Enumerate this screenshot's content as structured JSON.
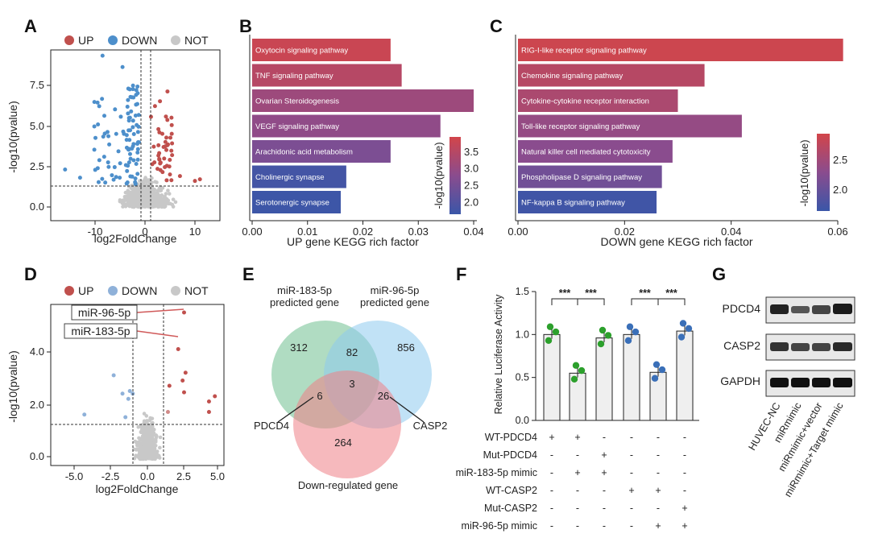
{
  "panels": {
    "A": "A",
    "B": "B",
    "C": "C",
    "D": "D",
    "E": "E",
    "F": "F",
    "G": "G"
  },
  "colors": {
    "up": "#c0504d",
    "down": "#4d8fcb",
    "not": "#c8c8c8",
    "green": "#2ca02c",
    "blue": "#3a6fb8"
  },
  "legend": {
    "up": "UP",
    "down": "DOWN",
    "not": "NOT"
  },
  "volcano_A": {
    "xlabel": "log2FoldChange",
    "ylabel": "-log10(pvalue)",
    "xticks": [
      "-10",
      "0",
      "10"
    ],
    "yticks": [
      "0.0",
      "2.5",
      "5.0",
      "7.5"
    ]
  },
  "volcano_D": {
    "xlabel": "log2FoldChange",
    "ylabel": "-log10(pvalue)",
    "xticks": [
      "-5.0",
      "-2.5",
      "0.0",
      "2.5",
      "5.0"
    ],
    "yticks": [
      "0.0",
      "2.0",
      "4.0"
    ],
    "labels": [
      "miR-96-5p",
      "miR-183-5p"
    ]
  },
  "chart_data": [
    {
      "type": "bar",
      "orientation": "horizontal",
      "categories": [
        "Oxytocin signaling pathway",
        "TNF signaling pathway",
        "Ovarian Steroidogenesis",
        "VEGF signaling pathway",
        "Arachidonic acid metabolism",
        "Cholinergic synapse",
        "Serotonergic synapse"
      ],
      "values": [
        0.025,
        0.027,
        0.04,
        0.034,
        0.025,
        0.017,
        0.016
      ],
      "color_values": [
        3.8,
        3.5,
        3.1,
        2.9,
        2.6,
        1.8,
        1.7
      ],
      "xlabel": "UP gene KEGG rich factor",
      "xlim": [
        0,
        0.04
      ],
      "xticks": [
        "0.00",
        "0.01",
        "0.02",
        "0.03",
        "0.04"
      ],
      "colorbar": {
        "label": "-log10(pvalue)",
        "ticks": [
          "2.0",
          "2.5",
          "3.0",
          "3.5"
        ]
      }
    },
    {
      "type": "bar",
      "orientation": "horizontal",
      "categories": [
        "RIG-I-like receptor signaling pathway",
        "Chemokine signaling pathway",
        "Cytokine-cytokine receptor interaction",
        "Toll-like receptor signaling pathway",
        "Natural killer cell mediated cytotoxicity",
        "Phospholipase D signaling pathway",
        "NF-kappa B signaling pathway"
      ],
      "values": [
        0.061,
        0.035,
        0.03,
        0.042,
        0.029,
        0.027,
        0.026
      ],
      "color_values": [
        2.9,
        2.7,
        2.6,
        2.4,
        2.3,
        2.1,
        1.7
      ],
      "xlabel": "DOWN gene KEGG rich factor",
      "xlim": [
        0,
        0.06
      ],
      "xticks": [
        "0.00",
        "0.02",
        "0.04",
        "0.06"
      ],
      "colorbar": {
        "label": "-log10(pvalue)",
        "ticks": [
          "2.0",
          "2.5"
        ]
      }
    },
    {
      "type": "bar",
      "ylabel": "Relative Luciferase Activity",
      "ylim": [
        0,
        1.5
      ],
      "yticks": [
        "0.0",
        "0.5",
        "1.0",
        "1.5"
      ],
      "values": [
        1.0,
        0.55,
        0.96,
        1.0,
        0.56,
        1.04
      ],
      "point_colors": [
        "green",
        "green",
        "green",
        "blue",
        "blue",
        "blue"
      ],
      "significance": "***",
      "conditions": [
        {
          "name": "WT-PDCD4",
          "marks": [
            "+",
            "+",
            "-",
            "-",
            "-",
            "-"
          ]
        },
        {
          "name": "Mut-PDCD4",
          "marks": [
            "-",
            "-",
            "+",
            "-",
            "-",
            "-"
          ]
        },
        {
          "name": "miR-183-5p mimic",
          "marks": [
            "-",
            "+",
            "+",
            "-",
            "-",
            "-"
          ]
        },
        {
          "name": "WT-CASP2",
          "marks": [
            "-",
            "-",
            "-",
            "+",
            "+",
            "-"
          ]
        },
        {
          "name": "Mut-CASP2",
          "marks": [
            "-",
            "-",
            "-",
            "-",
            "-",
            "+"
          ]
        },
        {
          "name": "miR-96-5p mimic",
          "marks": [
            "-",
            "-",
            "-",
            "-",
            "+",
            "+"
          ]
        }
      ]
    }
  ],
  "venn": {
    "set1": "miR-183-5p\npredicted gene",
    "set2": "miR-96-5p\npredicted gene",
    "set3": "Down-regulated gene",
    "n1": "312",
    "n12": "82",
    "n2": "856",
    "n123": "3",
    "n13": "6",
    "n23": "26",
    "n3": "264",
    "label13": "PDCD4",
    "label23": "CASP2"
  },
  "western": {
    "rows": [
      "PDCD4",
      "CASP2",
      "GAPDH"
    ],
    "lanes": [
      "HUVEC-NC",
      "miRmimic",
      "miRmimic+vector",
      "miRmimic+Target mimic"
    ]
  }
}
